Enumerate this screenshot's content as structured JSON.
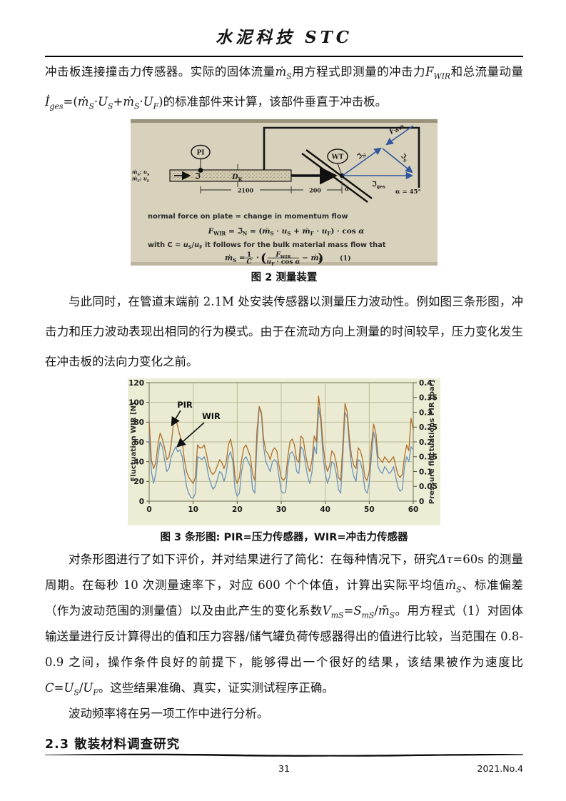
{
  "header": {
    "title": "水泥科技 STC"
  },
  "paragraphs": {
    "p1": [
      "冲击板连接撞击力传感器。实际的固体流量",
      {
        "t": "ṁ",
        "st": "it"
      },
      {
        "t": "S",
        "st": "it sub"
      },
      "用方程式即测量的冲击力",
      {
        "t": "F",
        "st": "it"
      },
      {
        "t": "WIR",
        "st": "it sub"
      },
      "和总流量动量",
      {
        "t": "İ",
        "st": "it"
      },
      {
        "t": "ges",
        "st": "it sub"
      },
      "=(",
      {
        "t": "ṁ",
        "st": "it"
      },
      {
        "t": "S",
        "st": "it sub"
      },
      "·",
      {
        "t": "U",
        "st": "it"
      },
      {
        "t": "S",
        "st": "it sub"
      },
      "+",
      {
        "t": "ṁ",
        "st": "it"
      },
      {
        "t": "S",
        "st": "it sub"
      },
      "·",
      {
        "t": "U",
        "st": "it"
      },
      {
        "t": "F",
        "st": "it sub"
      },
      ")的标准部件来计算，该部件垂直于冲击板。"
    ],
    "p2": [
      "与此同时，在管道末端前 2.1M 处安装传感器以测量压力波动性。例如图三条形图，冲击力和压力波动表现出相同的行为模式。由于在流动方向上测量的时间较早，压力变化发生在冲击板的法向力变化之前。"
    ],
    "p3": [
      "对条形图进行了如下评价，并对结果进行了简化：在每种情况下，研究",
      {
        "t": "Δτ",
        "st": "it"
      },
      "=60s 的测量周期。在每秒 10 次测量速率下，对应 600 个个体值，计算出实际平均值",
      {
        "t": "m̄",
        "st": "it"
      },
      {
        "t": "S",
        "st": "it sub"
      },
      "、标准偏差（作为波动范围的测量值）以及由此产生的变化系数",
      {
        "t": "V",
        "st": "it"
      },
      {
        "t": "mS",
        "st": "it sub"
      },
      "=",
      {
        "t": "S",
        "st": "it"
      },
      {
        "t": "mS",
        "st": "it sub"
      },
      "/",
      {
        "t": "m̄",
        "st": "it"
      },
      {
        "t": "S",
        "st": "it sub"
      },
      "。用方程式（1）对固体输送量进行反计算得出的值和压力容器/储气罐负荷传感器得出的值进行比较，当范围在 0.8-0.9 之间，操作条件良好的前提下，能够得出一个很好的结果，该结果被作为速度比",
      {
        "t": "C",
        "st": "it"
      },
      "=",
      {
        "t": "U",
        "st": "it"
      },
      {
        "t": "S",
        "st": "it sub"
      },
      "/",
      {
        "t": "U",
        "st": "it"
      },
      {
        "t": "F",
        "st": "it sub"
      },
      "。这些结果准确、真实，证实测试程序正确。"
    ],
    "p4": [
      "波动频率将在另一项工作中进行分析。"
    ]
  },
  "fig2": {
    "caption": "图 2 测量装置",
    "gauge_pi": "PI",
    "gauge_wt": "WT",
    "pipe_flow_symbol": "ℑ",
    "pipe_diameter": [
      {
        "t": "D",
        "st": "it"
      },
      {
        "t": "R",
        "st": "sub"
      }
    ],
    "inlet_top": [
      {
        "t": "ṁ",
        "st": "it"
      },
      {
        "t": "S",
        "st": "sub"
      },
      "; ",
      {
        "t": "u",
        "st": "it"
      },
      {
        "t": "S",
        "st": "sub"
      }
    ],
    "inlet_bottom": [
      {
        "t": "ṁ",
        "st": "it"
      },
      {
        "t": "F",
        "st": "sub"
      },
      "; ",
      {
        "t": "u",
        "st": "it"
      },
      {
        "t": "F",
        "st": "sub"
      }
    ],
    "dim_2100": "2100",
    "dim_200": "200",
    "angle_symbol": "α",
    "angle_value": "α = 45°",
    "vec_n": [
      "ℑ",
      {
        "t": "N",
        "st": "sub"
      }
    ],
    "vec_s": [
      "ℑ",
      {
        "t": "S",
        "st": "sub"
      }
    ],
    "vec_ges": [
      "ℑ",
      {
        "t": "ges",
        "st": "sub"
      }
    ],
    "vec_fwir": [
      {
        "t": "F",
        "st": "it"
      },
      {
        "t": "WIR",
        "st": "sub"
      }
    ],
    "line1": "normal force on plate = change in momentum flow",
    "formula1": [
      {
        "t": "F",
        "st": "it"
      },
      {
        "t": "WIR",
        "st": "sub"
      },
      "  =  ℑ",
      {
        "t": "N",
        "st": "sub"
      },
      "  =  (",
      {
        "t": "ṁ",
        "st": "it"
      },
      {
        "t": "S",
        "st": "sub"
      },
      " · ",
      {
        "t": "u",
        "st": "it"
      },
      {
        "t": "S",
        "st": "sub"
      },
      " + ",
      {
        "t": "ṁ",
        "st": "it"
      },
      {
        "t": "F",
        "st": "sub"
      },
      " · ",
      {
        "t": "u",
        "st": "it"
      },
      {
        "t": "F",
        "st": "sub"
      },
      ") · cos ",
      {
        "t": "α",
        "st": "it"
      }
    ],
    "line2": [
      "with C = ",
      {
        "t": "u",
        "st": "it"
      },
      {
        "t": "S",
        "st": "sub"
      },
      "/",
      {
        "t": "u",
        "st": "it"
      },
      {
        "t": "F",
        "st": "sub"
      },
      " it follows for the bulk material mass flow that"
    ],
    "formula2_lhs": [
      {
        "t": "ṁ",
        "st": "it"
      },
      {
        "t": "S",
        "st": "sub"
      },
      "  ="
    ],
    "frac1_num": "1",
    "frac1_den": "C",
    "dot": "·",
    "paren_open": "(",
    "frac2_num": [
      {
        "t": "F",
        "st": "it"
      },
      {
        "t": "WIR",
        "st": "sub"
      }
    ],
    "frac2_den": [
      {
        "t": "u",
        "st": "it"
      },
      {
        "t": "F",
        "st": "sub"
      },
      " · cos ",
      {
        "t": "α",
        "st": "it"
      }
    ],
    "minus_term": [
      "− ",
      {
        "t": "ṁ",
        "st": "it"
      },
      {
        "t": "F",
        "st": "sub"
      }
    ],
    "paren_close": ")",
    "eq_number": "(1)"
  },
  "fig3": {
    "caption": "图 3 条形图: PIR=压力传感器，WIR=冲击力传感器"
  },
  "chart_data": {
    "type": "line",
    "title": "",
    "xlabel": "",
    "ylabel_left": "Fluctuation WIR [N]",
    "ylabel_right": "Pressure fluctuations PIR [bar]",
    "x_start": 0,
    "x_step": 0.5,
    "xlim": [
      0,
      60
    ],
    "xticks": [
      "0",
      "10",
      "20",
      "30",
      "40",
      "50",
      "60"
    ],
    "ylim_left": [
      0,
      120
    ],
    "yticks_left": [
      "0",
      "20",
      "40",
      "60",
      "80",
      "100",
      "120"
    ],
    "ylim_right": [
      0,
      0.4
    ],
    "yticks_right": [
      "0",
      "0.05",
      "0.1",
      "0.15",
      "0.2",
      "0.25",
      "0.3",
      "0.35",
      "0.4"
    ],
    "grid": true,
    "annotations": [
      {
        "label": "PIR"
      },
      {
        "label": "WIR"
      }
    ],
    "series": [
      {
        "name": "WIR",
        "axis": "left",
        "unit": "N",
        "color": "#6d93b9",
        "values": [
          72,
          30,
          18,
          28,
          45,
          60,
          55,
          42,
          30,
          33,
          45,
          50,
          55,
          50,
          52,
          45,
          30,
          15,
          8,
          4,
          3,
          8,
          45,
          44,
          42,
          45,
          38,
          25,
          18,
          12,
          15,
          22,
          30,
          28,
          20,
          28,
          45,
          50,
          40,
          12,
          5,
          8,
          30,
          42,
          45,
          40,
          35,
          12,
          8,
          60,
          95,
          88,
          55,
          40,
          35,
          30,
          40,
          42,
          40,
          25,
          10,
          8,
          9,
          35,
          48,
          50,
          45,
          30,
          28,
          55,
          52,
          38,
          25,
          18,
          30,
          55,
          48,
          95,
          80,
          45,
          28,
          18,
          25,
          40,
          38,
          28,
          12,
          8,
          45,
          90,
          85,
          55,
          35,
          25,
          20,
          42,
          40,
          30,
          12,
          8,
          18,
          45,
          70,
          60,
          35,
          30,
          28,
          35,
          32,
          28,
          30,
          35,
          25,
          15,
          10,
          12,
          35,
          45,
          40,
          55,
          52
        ]
      },
      {
        "name": "PIR",
        "axis": "right",
        "unit": "bar",
        "color": "#b06f2c",
        "values": [
          0.27,
          0.14,
          0.11,
          0.13,
          0.19,
          0.23,
          0.21,
          0.18,
          0.14,
          0.15,
          0.19,
          0.26,
          0.28,
          0.25,
          0.22,
          0.2,
          0.14,
          0.1,
          0.08,
          0.07,
          0.06,
          0.08,
          0.19,
          0.18,
          0.18,
          0.19,
          0.16,
          0.12,
          0.1,
          0.09,
          0.1,
          0.12,
          0.14,
          0.13,
          0.11,
          0.13,
          0.19,
          0.21,
          0.17,
          0.08,
          0.06,
          0.08,
          0.14,
          0.18,
          0.19,
          0.17,
          0.15,
          0.09,
          0.07,
          0.24,
          0.32,
          0.3,
          0.21,
          0.17,
          0.16,
          0.14,
          0.17,
          0.18,
          0.17,
          0.12,
          0.08,
          0.07,
          0.08,
          0.15,
          0.2,
          0.21,
          0.19,
          0.14,
          0.13,
          0.22,
          0.21,
          0.16,
          0.12,
          0.1,
          0.14,
          0.22,
          0.2,
          0.355,
          0.29,
          0.19,
          0.13,
          0.1,
          0.12,
          0.17,
          0.16,
          0.13,
          0.08,
          0.07,
          0.19,
          0.33,
          0.3,
          0.21,
          0.15,
          0.12,
          0.11,
          0.18,
          0.17,
          0.14,
          0.08,
          0.07,
          0.1,
          0.19,
          0.26,
          0.23,
          0.15,
          0.14,
          0.13,
          0.15,
          0.14,
          0.13,
          0.14,
          0.15,
          0.12,
          0.09,
          0.08,
          0.09,
          0.15,
          0.19,
          0.17,
          0.28,
          0.24
        ]
      }
    ]
  },
  "section_heading": "2.3 散装材料调查研究",
  "footer": {
    "page_number": "31",
    "issue": "2021.No.4"
  }
}
